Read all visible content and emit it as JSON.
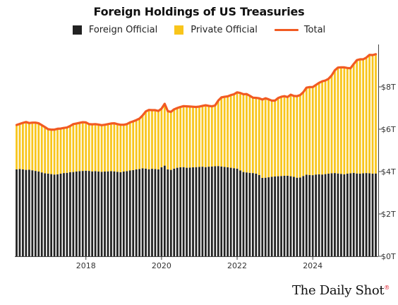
{
  "chart_data": {
    "type": "bar",
    "title": "Foreign Holdings of US Treasuries",
    "subtitle": "",
    "xlabel": "",
    "ylabel": "",
    "x_start": "2016-03",
    "x_end": "2025-09",
    "x_ticks": [
      "2018",
      "2020",
      "2022",
      "2024"
    ],
    "y_ticks": [
      "$0T",
      "$2T",
      "$4T",
      "$6T",
      "$8T"
    ],
    "ylim": [
      0,
      10
    ],
    "grid": false,
    "legend_position": "top",
    "series": [
      {
        "name": "Foreign Official",
        "kind": "stacked-bar",
        "color": "#222222",
        "values": [
          4.1,
          4.12,
          4.1,
          4.08,
          4.09,
          4.06,
          4.03,
          4.0,
          3.96,
          3.92,
          3.9,
          3.88,
          3.86,
          3.87,
          3.9,
          3.93,
          3.94,
          3.97,
          3.98,
          4.0,
          4.02,
          4.03,
          4.04,
          4.03,
          4.01,
          4.02,
          4.0,
          3.99,
          4.0,
          4.01,
          4.02,
          4.01,
          3.99,
          3.97,
          4.0,
          4.02,
          4.05,
          4.07,
          4.1,
          4.12,
          4.15,
          4.14,
          4.11,
          4.13,
          4.12,
          4.1,
          4.2,
          4.28,
          4.1,
          4.08,
          4.14,
          4.18,
          4.2,
          4.21,
          4.18,
          4.19,
          4.2,
          4.21,
          4.22,
          4.23,
          4.21,
          4.23,
          4.24,
          4.25,
          4.26,
          4.24,
          4.22,
          4.2,
          4.18,
          4.16,
          4.14,
          4.05,
          3.98,
          3.96,
          3.94,
          3.93,
          3.9,
          3.84,
          3.7,
          3.71,
          3.73,
          3.75,
          3.77,
          3.78,
          3.79,
          3.8,
          3.8,
          3.78,
          3.75,
          3.71,
          3.72,
          3.79,
          3.85,
          3.84,
          3.83,
          3.86,
          3.87,
          3.86,
          3.88,
          3.9,
          3.92,
          3.93,
          3.91,
          3.89,
          3.87,
          3.9,
          3.92,
          3.94,
          3.91,
          3.9,
          3.92,
          3.93,
          3.92,
          3.9,
          3.91
        ]
      },
      {
        "name": "Private Official",
        "kind": "stacked-bar",
        "color": "#f8c51b",
        "values": [
          2.1,
          2.13,
          2.2,
          2.26,
          2.2,
          2.25,
          2.28,
          2.28,
          2.23,
          2.18,
          2.1,
          2.1,
          2.12,
          2.15,
          2.13,
          2.13,
          2.14,
          2.18,
          2.26,
          2.27,
          2.28,
          2.3,
          2.28,
          2.21,
          2.22,
          2.22,
          2.22,
          2.2,
          2.21,
          2.23,
          2.25,
          2.27,
          2.25,
          2.24,
          2.21,
          2.22,
          2.27,
          2.3,
          2.33,
          2.38,
          2.5,
          2.7,
          2.8,
          2.77,
          2.78,
          2.76,
          2.77,
          2.92,
          2.75,
          2.74,
          2.8,
          2.82,
          2.85,
          2.88,
          2.9,
          2.88,
          2.86,
          2.84,
          2.85,
          2.87,
          2.92,
          2.87,
          2.84,
          2.87,
          3.09,
          3.26,
          3.31,
          3.35,
          3.43,
          3.49,
          3.6,
          3.66,
          3.67,
          3.7,
          3.64,
          3.56,
          3.58,
          3.62,
          3.7,
          3.75,
          3.68,
          3.6,
          3.58,
          3.69,
          3.74,
          3.76,
          3.72,
          3.85,
          3.82,
          3.85,
          3.89,
          3.96,
          4.11,
          4.15,
          4.16,
          4.23,
          4.32,
          4.4,
          4.42,
          4.48,
          4.62,
          4.85,
          5.0,
          5.03,
          5.05,
          4.99,
          4.96,
          5.14,
          5.35,
          5.4,
          5.38,
          5.45,
          5.59,
          5.6,
          5.63
        ]
      },
      {
        "name": "Total",
        "kind": "line",
        "color": "#f15a22"
      }
    ]
  },
  "colors": {
    "foreign_official": "#222222",
    "private_official": "#f8c51b",
    "total": "#f15a22"
  },
  "credit": {
    "name": "The Daily Shot",
    "mark": "®"
  }
}
